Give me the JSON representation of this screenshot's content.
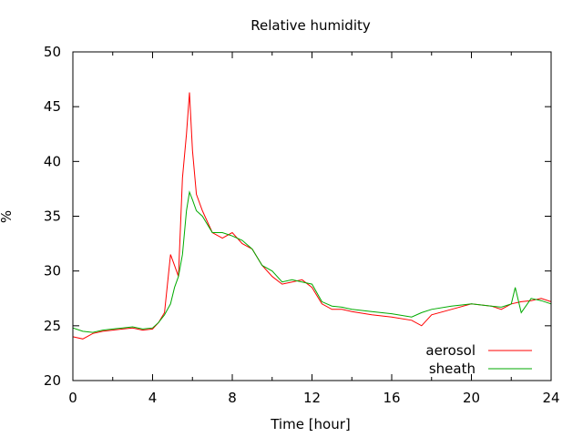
{
  "chart_data": {
    "type": "line",
    "title": "Relative humidity",
    "xlabel": "Time [hour]",
    "ylabel": "%",
    "xlim": [
      0,
      24
    ],
    "ylim": [
      20,
      50
    ],
    "xticks": [
      0,
      4,
      8,
      12,
      16,
      20,
      24
    ],
    "xtick_labels": [
      "0",
      "4",
      "8",
      "12",
      "16",
      "20",
      "24"
    ],
    "yticks": [
      20,
      25,
      30,
      35,
      40,
      45,
      50
    ],
    "ytick_labels": [
      "20",
      "25",
      "30",
      "35",
      "40",
      "45",
      "50"
    ],
    "grid": false,
    "legend_position": "bottom-right",
    "series": [
      {
        "name": "aerosol",
        "color": "#ff0000",
        "x": [
          0,
          0.5,
          1,
          1.5,
          2,
          2.5,
          3,
          3.5,
          4,
          4.3,
          4.6,
          4.9,
          5.1,
          5.3,
          5.5,
          5.7,
          5.85,
          6.0,
          6.2,
          6.5,
          7,
          7.5,
          8,
          8.5,
          9,
          9.5,
          10,
          10.5,
          11,
          11.5,
          12,
          12.5,
          13,
          13.5,
          14,
          15,
          16,
          17,
          17.5,
          18,
          19,
          20,
          21,
          21.5,
          22,
          22.5,
          23,
          23.5,
          24
        ],
        "y": [
          24.0,
          23.8,
          24.3,
          24.5,
          24.6,
          24.7,
          24.8,
          24.6,
          24.7,
          25.3,
          26.2,
          31.5,
          30.5,
          29.5,
          38.5,
          42.5,
          46.3,
          41.0,
          37.0,
          35.5,
          33.5,
          33.0,
          33.5,
          32.5,
          32.0,
          30.5,
          29.5,
          28.8,
          29.0,
          29.2,
          28.5,
          27.0,
          26.5,
          26.5,
          26.3,
          26.0,
          25.8,
          25.5,
          25.0,
          26.0,
          26.5,
          27.0,
          26.8,
          26.5,
          27.0,
          27.2,
          27.3,
          27.5,
          27.2
        ]
      },
      {
        "name": "sheath",
        "color": "#00aa00",
        "x": [
          0,
          0.5,
          1,
          1.5,
          2,
          2.5,
          3,
          3.5,
          4,
          4.3,
          4.6,
          4.9,
          5.1,
          5.3,
          5.5,
          5.7,
          5.85,
          6.0,
          6.2,
          6.5,
          7,
          7.5,
          8,
          8.5,
          9,
          9.5,
          10,
          10.5,
          11,
          11.5,
          12,
          12.5,
          13,
          13.5,
          14,
          15,
          16,
          17,
          17.5,
          18,
          19,
          20,
          21,
          21.5,
          22,
          22.2,
          22.5,
          23,
          23.5,
          24
        ],
        "y": [
          24.8,
          24.5,
          24.4,
          24.6,
          24.7,
          24.8,
          24.9,
          24.7,
          24.8,
          25.3,
          26.0,
          27.0,
          28.5,
          29.5,
          31.5,
          35.5,
          37.2,
          36.5,
          35.5,
          35.0,
          33.5,
          33.5,
          33.2,
          32.8,
          32.0,
          30.5,
          30.0,
          29.0,
          29.2,
          29.0,
          28.8,
          27.2,
          26.8,
          26.7,
          26.5,
          26.3,
          26.1,
          25.8,
          26.2,
          26.5,
          26.8,
          27.0,
          26.8,
          26.7,
          27.0,
          28.5,
          26.2,
          27.5,
          27.3,
          27.0
        ]
      }
    ]
  }
}
